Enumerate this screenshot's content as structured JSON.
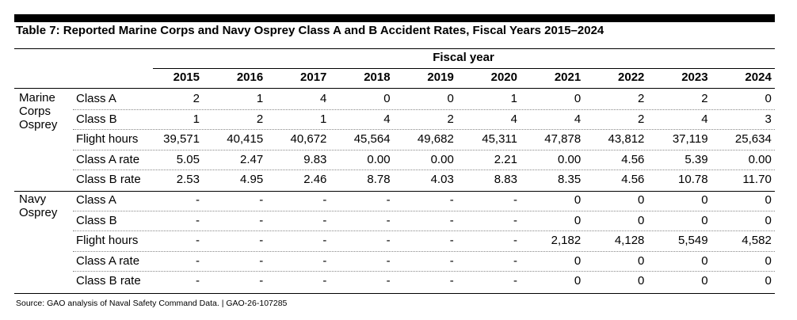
{
  "title": "Table 7: Reported Marine Corps and Navy Osprey Class A and B Accident Rates, Fiscal Years 2015–2024",
  "table": {
    "header": "Fiscal year",
    "years": [
      "2015",
      "2016",
      "2017",
      "2018",
      "2019",
      "2020",
      "2021",
      "2022",
      "2023",
      "2024"
    ],
    "groups": [
      {
        "label": "Marine Corps Osprey",
        "rows": [
          {
            "label": "Class A",
            "values": [
              "2",
              "1",
              "4",
              "0",
              "0",
              "1",
              "0",
              "2",
              "2",
              "0"
            ]
          },
          {
            "label": "Class B",
            "values": [
              "1",
              "2",
              "1",
              "4",
              "2",
              "4",
              "4",
              "2",
              "4",
              "3"
            ]
          },
          {
            "label": "Flight hours",
            "values": [
              "39,571",
              "40,415",
              "40,672",
              "45,564",
              "49,682",
              "45,311",
              "47,878",
              "43,812",
              "37,119",
              "25,634"
            ]
          },
          {
            "label": "Class A rate",
            "values": [
              "5.05",
              "2.47",
              "9.83",
              "0.00",
              "0.00",
              "2.21",
              "0.00",
              "4.56",
              "5.39",
              "0.00"
            ]
          },
          {
            "label": "Class B rate",
            "values": [
              "2.53",
              "4.95",
              "2.46",
              "8.78",
              "4.03",
              "8.83",
              "8.35",
              "4.56",
              "10.78",
              "11.70"
            ]
          }
        ]
      },
      {
        "label": "Navy Osprey",
        "rows": [
          {
            "label": "Class A",
            "values": [
              "-",
              "-",
              "-",
              "-",
              "-",
              "-",
              "0",
              "0",
              "0",
              "0"
            ]
          },
          {
            "label": "Class B",
            "values": [
              "-",
              "-",
              "-",
              "-",
              "-",
              "-",
              "0",
              "0",
              "0",
              "0"
            ]
          },
          {
            "label": "Flight hours",
            "values": [
              "-",
              "-",
              "-",
              "-",
              "-",
              "-",
              "2,182",
              "4,128",
              "5,549",
              "4,582"
            ]
          },
          {
            "label": "Class A rate",
            "values": [
              "-",
              "-",
              "-",
              "-",
              "-",
              "-",
              "0",
              "0",
              "0",
              "0"
            ]
          },
          {
            "label": "Class B rate",
            "values": [
              "-",
              "-",
              "-",
              "-",
              "-",
              "-",
              "0",
              "0",
              "0",
              "0"
            ]
          }
        ]
      }
    ]
  },
  "source": "Source: GAO analysis of Naval Safety Command Data. | GAO-26-107285"
}
